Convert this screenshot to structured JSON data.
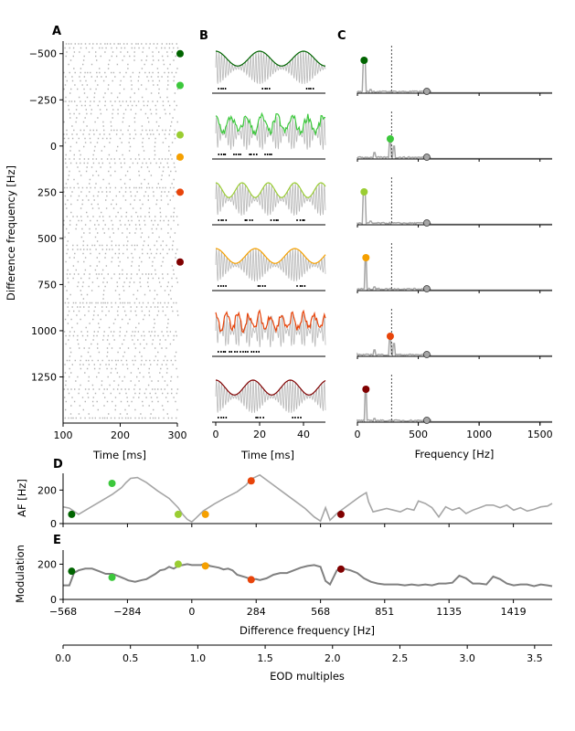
{
  "colors": {
    "dark_green": "#006400",
    "green": "#3cc83c",
    "yellow_green": "#9acd32",
    "orange": "#f5a000",
    "red_orange": "#e8440a",
    "dark_red": "#800000",
    "gray": "#a6a6a6",
    "dark_gray": "#808080"
  },
  "chart_data": [
    {
      "panel": "A",
      "type": "scatter",
      "title": "",
      "xlabel": "Time [ms]",
      "ylabel": "Difference frequency [Hz]",
      "xlim": [
        100,
        300
      ],
      "ylim": [
        -568,
        1500
      ],
      "y_inverted": true,
      "xticks": [
        "100",
        "200",
        "300"
      ],
      "yticks": [
        "−500",
        "−250",
        "0",
        "250",
        "500",
        "750",
        "1000",
        "1250"
      ],
      "marker_df": [
        -500,
        -328,
        -60,
        60,
        250,
        628
      ]
    },
    {
      "panel": "B",
      "type": "line",
      "xlabel": "Time [ms]",
      "xlim": [
        0,
        50
      ],
      "xticks": [
        "0",
        "20",
        "40"
      ],
      "rows": 6
    },
    {
      "panel": "C",
      "type": "line",
      "xlabel": "Frequency [Hz]",
      "xlim": [
        0,
        1600
      ],
      "xticks": [
        "0",
        "500",
        "1000",
        "1500"
      ],
      "dashed_x": 280,
      "marker_freq": [
        55,
        270,
        55,
        70,
        270,
        70
      ],
      "gray_marker_freq": 570
    },
    {
      "panel": "D",
      "type": "line",
      "ylabel": "AF [Hz]",
      "xlim": [
        -568,
        1590
      ],
      "ylim": [
        0,
        300
      ],
      "yticks": [
        "0",
        "200"
      ],
      "series": [
        {
          "x": [
            -568,
            -540,
            -500,
            -450,
            -400,
            -350,
            -310,
            -290,
            -270,
            -240,
            -200,
            -150,
            -100,
            -60,
            -40,
            -20,
            0,
            20,
            50,
            100,
            150,
            200,
            240,
            260,
            284,
            300,
            350,
            400,
            450,
            500,
            540,
            568,
            590,
            610,
            640,
            670,
            700,
            740,
            770,
            780,
            800,
            830,
            860,
            890,
            920,
            950,
            980,
            1000,
            1030,
            1060,
            1090,
            1120,
            1150,
            1180,
            1210,
            1240,
            1270,
            1300,
            1330,
            1360,
            1390,
            1420,
            1450,
            1480,
            1510,
            1540,
            1570,
            1590
          ],
          "y": [
            100,
            92,
            55,
            95,
            135,
            175,
            215,
            245,
            270,
            275,
            245,
            195,
            150,
            95,
            55,
            25,
            10,
            35,
            75,
            118,
            155,
            190,
            230,
            265,
            280,
            290,
            240,
            190,
            140,
            90,
            40,
            15,
            95,
            20,
            60,
            90,
            120,
            160,
            185,
            130,
            70,
            80,
            90,
            80,
            70,
            90,
            80,
            135,
            120,
            95,
            40,
            100,
            80,
            95,
            60,
            80,
            95,
            110,
            110,
            95,
            110,
            80,
            95,
            75,
            85,
            100,
            105,
            120
          ]
        }
      ],
      "markers": [
        {
          "x": -530,
          "y": 55
        },
        {
          "x": -352,
          "y": 240
        },
        {
          "x": -60,
          "y": 55
        },
        {
          "x": 60,
          "y": 55
        },
        {
          "x": 262,
          "y": 255
        },
        {
          "x": 658,
          "y": 55
        }
      ]
    },
    {
      "panel": "E",
      "type": "line",
      "ylabel": "Modulation",
      "xlabel": "Difference frequency [Hz]",
      "xlim": [
        -568,
        1590
      ],
      "ylim": [
        0,
        280
      ],
      "yticks": [
        "0",
        "200"
      ],
      "xticks": [
        "−568",
        "−284",
        "0",
        "284",
        "568",
        "851",
        "1135",
        "1419"
      ],
      "series": [
        {
          "x": [
            -568,
            -540,
            -520,
            -500,
            -470,
            -440,
            -410,
            -380,
            -350,
            -320,
            -300,
            -280,
            -250,
            -220,
            -200,
            -180,
            -160,
            -140,
            -120,
            -100,
            -80,
            -60,
            -40,
            -20,
            0,
            20,
            40,
            60,
            80,
            100,
            120,
            140,
            160,
            180,
            200,
            240,
            260,
            284,
            300,
            330,
            360,
            390,
            420,
            450,
            480,
            510,
            540,
            568,
            590,
            610,
            640,
            670,
            700,
            730,
            760,
            790,
            820,
            850,
            880,
            910,
            940,
            970,
            1000,
            1030,
            1060,
            1090,
            1120,
            1150,
            1180,
            1210,
            1240,
            1270,
            1300,
            1330,
            1360,
            1390,
            1420,
            1450,
            1480,
            1510,
            1540,
            1570,
            1590
          ],
          "y": [
            80,
            80,
            150,
            165,
            175,
            175,
            160,
            145,
            145,
            130,
            120,
            108,
            100,
            110,
            115,
            130,
            145,
            165,
            170,
            185,
            175,
            190,
            195,
            200,
            195,
            195,
            195,
            205,
            190,
            185,
            180,
            170,
            175,
            165,
            140,
            125,
            115,
            115,
            110,
            120,
            140,
            150,
            150,
            165,
            180,
            190,
            195,
            185,
            105,
            85,
            165,
            175,
            165,
            150,
            120,
            100,
            90,
            85,
            85,
            85,
            80,
            85,
            80,
            85,
            80,
            90,
            90,
            95,
            135,
            120,
            90,
            90,
            85,
            130,
            115,
            90,
            80,
            85,
            85,
            75,
            85,
            80,
            75
          ]
        }
      ],
      "markers": [
        {
          "x": -530,
          "y": 160
        },
        {
          "x": -352,
          "y": 125
        },
        {
          "x": -60,
          "y": 200
        },
        {
          "x": 60,
          "y": 190
        },
        {
          "x": 262,
          "y": 112
        },
        {
          "x": 658,
          "y": 172
        }
      ]
    },
    {
      "panel": "EOD axis",
      "type": "axis",
      "xlabel": "EOD multiples",
      "xlim": [
        0,
        3.63
      ],
      "xticks": [
        "0.0",
        "0.5",
        "1.0",
        "1.5",
        "2.0",
        "2.5",
        "3.0",
        "3.5"
      ]
    }
  ],
  "panel_labels": [
    "A",
    "B",
    "C",
    "D",
    "E"
  ]
}
